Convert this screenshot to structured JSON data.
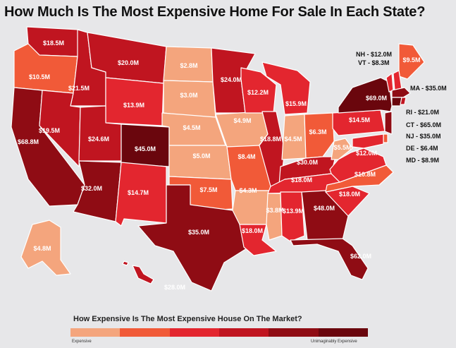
{
  "title": "How Much Is The Most Expensive Home For Sale In Each State?",
  "palette": {
    "1": "#f4a57d",
    "2": "#f15a38",
    "3": "#e3262f",
    "4": "#c01520",
    "5": "#8f0c14",
    "6": "#6a060d",
    "border": "#ffffff"
  },
  "legend": {
    "title": "How Expensive Is The Most Expensive House On The Market?",
    "low_label": "Expensive",
    "high_label": "Unimaginably Expensive",
    "scale": [
      "#f4a57d",
      "#f15a38",
      "#e3262f",
      "#c01520",
      "#8f0c14",
      "#6a060d"
    ]
  },
  "states": [
    {
      "id": "WA",
      "label": "$18.5M",
      "level": 4
    },
    {
      "id": "OR",
      "label": "$10.5M",
      "level": 2
    },
    {
      "id": "CA",
      "label": "$68.8M",
      "level": 5
    },
    {
      "id": "ID",
      "label": "$21.5M",
      "level": 4
    },
    {
      "id": "NV",
      "label": "$19.5M",
      "level": 4
    },
    {
      "id": "MT",
      "label": "$20.0M",
      "level": 4
    },
    {
      "id": "WY",
      "label": "$13.9M",
      "level": 3
    },
    {
      "id": "UT",
      "label": "$24.6M",
      "level": 4
    },
    {
      "id": "CO",
      "label": "$45.0M",
      "level": 6
    },
    {
      "id": "AZ",
      "label": "$32.0M",
      "level": 5
    },
    {
      "id": "NM",
      "label": "$14.7M",
      "level": 3
    },
    {
      "id": "ND",
      "label": "$2.8M",
      "level": 1
    },
    {
      "id": "SD",
      "label": "$3.0M",
      "level": 1
    },
    {
      "id": "NE",
      "label": "$4.5M",
      "level": 1
    },
    {
      "id": "KS",
      "label": "$5.0M",
      "level": 1
    },
    {
      "id": "OK",
      "label": "$7.5M",
      "level": 2
    },
    {
      "id": "TX",
      "label": "$35.0M",
      "level": 5
    },
    {
      "id": "MN",
      "label": "$24.0M",
      "level": 4
    },
    {
      "id": "IA",
      "label": "$4.9M",
      "level": 1
    },
    {
      "id": "MO",
      "label": "$8.4M",
      "level": 2
    },
    {
      "id": "AR",
      "label": "$4.3M",
      "level": 1
    },
    {
      "id": "LA",
      "label": "$18.0M",
      "level": 3
    },
    {
      "id": "WI",
      "label": "$12.2M",
      "level": 3
    },
    {
      "id": "IL",
      "label": "$18.8M",
      "level": 4
    },
    {
      "id": "MI",
      "label": "$15.9M",
      "level": 3
    },
    {
      "id": "IN",
      "label": "$4.5M",
      "level": 1
    },
    {
      "id": "OH",
      "label": "$6.3M",
      "level": 2
    },
    {
      "id": "KY",
      "label": "$30.0M",
      "level": 4
    },
    {
      "id": "TN",
      "label": "$18.0M",
      "level": 3
    },
    {
      "id": "MS",
      "label": "$3.8M",
      "level": 1
    },
    {
      "id": "AL",
      "label": "$13.9M",
      "level": 3
    },
    {
      "id": "GA",
      "label": "$48.0M",
      "level": 5
    },
    {
      "id": "FL",
      "label": "$62.0M",
      "level": 5
    },
    {
      "id": "SC",
      "label": "$18.0M",
      "level": 3
    },
    {
      "id": "NC",
      "label": "$10.8M",
      "level": 2
    },
    {
      "id": "VA",
      "label": "$12.0M",
      "level": 3
    },
    {
      "id": "WV",
      "label": "$5.5M",
      "level": 1
    },
    {
      "id": "PA",
      "label": "$14.5M",
      "level": 3
    },
    {
      "id": "NY",
      "label": "$69.0M",
      "level": 6
    },
    {
      "id": "ME",
      "label": "$9.5M",
      "level": 2
    },
    {
      "id": "VT",
      "label": "",
      "level": 3
    },
    {
      "id": "NH",
      "label": "",
      "level": 3
    },
    {
      "id": "MA",
      "label": "",
      "level": 5
    },
    {
      "id": "CT",
      "label": "",
      "level": 6
    },
    {
      "id": "RI",
      "label": "",
      "level": 4
    },
    {
      "id": "NJ",
      "label": "",
      "level": 5
    },
    {
      "id": "DE",
      "label": "",
      "level": 2
    },
    {
      "id": "MD",
      "label": "",
      "level": 3
    },
    {
      "id": "AK",
      "label": "$4.8M",
      "level": 1
    },
    {
      "id": "HI",
      "label": "$28.0M",
      "level": 4
    }
  ],
  "side_labels": {
    "nh": "NH - $12.0M",
    "vt": "VT - $8.3M",
    "ma": "MA - $35.0M",
    "ri": "RI - $21.0M",
    "ct": "CT - $65.0M",
    "nj": "NJ - $35.0M",
    "de": "DE - $6.4M",
    "md": "MD - $8.9M"
  }
}
